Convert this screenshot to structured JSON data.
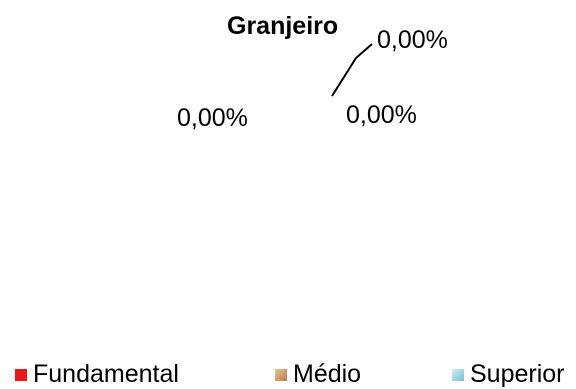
{
  "chart_data": {
    "type": "pie",
    "title": "Granjeiro",
    "categories": [
      "Fundamental",
      "Médio",
      "Superior"
    ],
    "values": [
      0,
      0,
      0
    ],
    "data_labels": [
      "0,00%",
      "0,00%",
      "0,00%"
    ],
    "legend_position": "bottom",
    "colors": {
      "Fundamental": "#e41a1c",
      "Médio": "#d9a06a",
      "Superior": "#9fd7dc"
    }
  }
}
